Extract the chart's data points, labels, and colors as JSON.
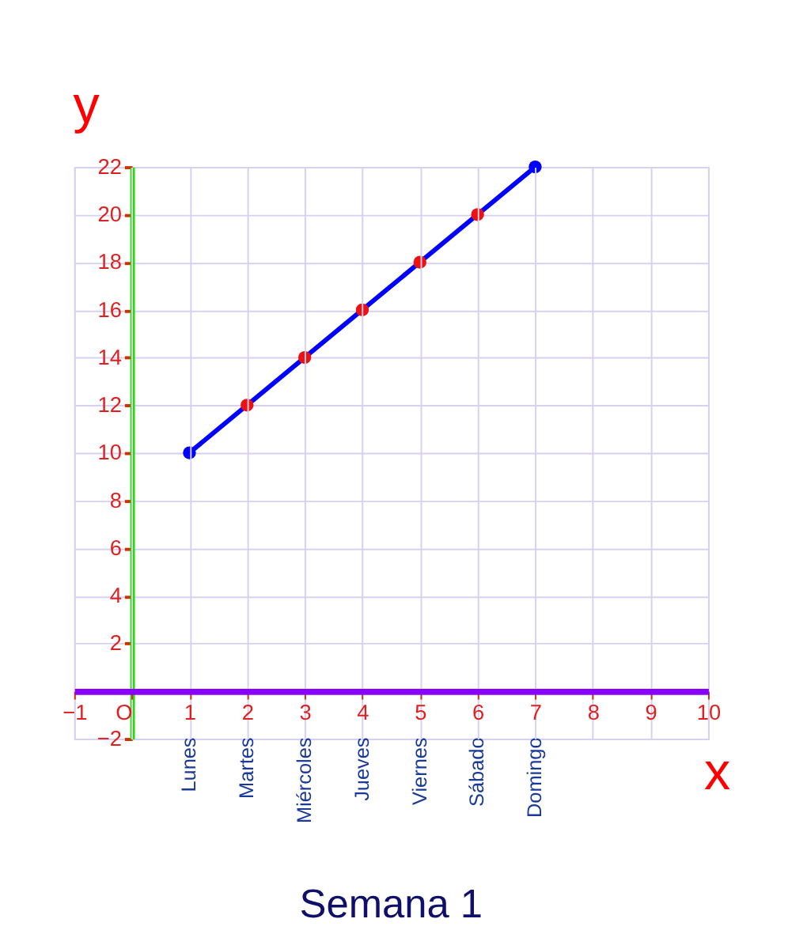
{
  "chart_data": {
    "type": "line",
    "title": "Semana 1",
    "xlabel": "x",
    "ylabel": "y",
    "x": [
      1,
      2,
      3,
      4,
      5,
      6,
      7
    ],
    "series": [
      {
        "color": "#0000ff",
        "colors": [
          "#0000ff",
          "#ee1111",
          "#ee1111",
          "#ee1111",
          "#ee1111",
          "#ee1111",
          "#0000ff"
        ],
        "values": [
          10,
          12,
          14,
          16,
          18,
          20,
          22
        ]
      }
    ],
    "xlim": [
      -1,
      10
    ],
    "ylim": [
      -2,
      22
    ],
    "xticks": [
      -1,
      {
        "value": 0,
        "label": "O"
      },
      1,
      2,
      3,
      4,
      5,
      6,
      7,
      8,
      9,
      10
    ],
    "yticks": [
      -2,
      2,
      4,
      6,
      8,
      10,
      12,
      14,
      16,
      18,
      20,
      22
    ],
    "annotations": [
      "Lunes",
      "Martes",
      "Miércoles",
      "Jueves",
      "Viernes",
      "Sábado",
      "Domingo"
    ],
    "grid": true,
    "marker": "circle",
    "line_style": "solid"
  }
}
